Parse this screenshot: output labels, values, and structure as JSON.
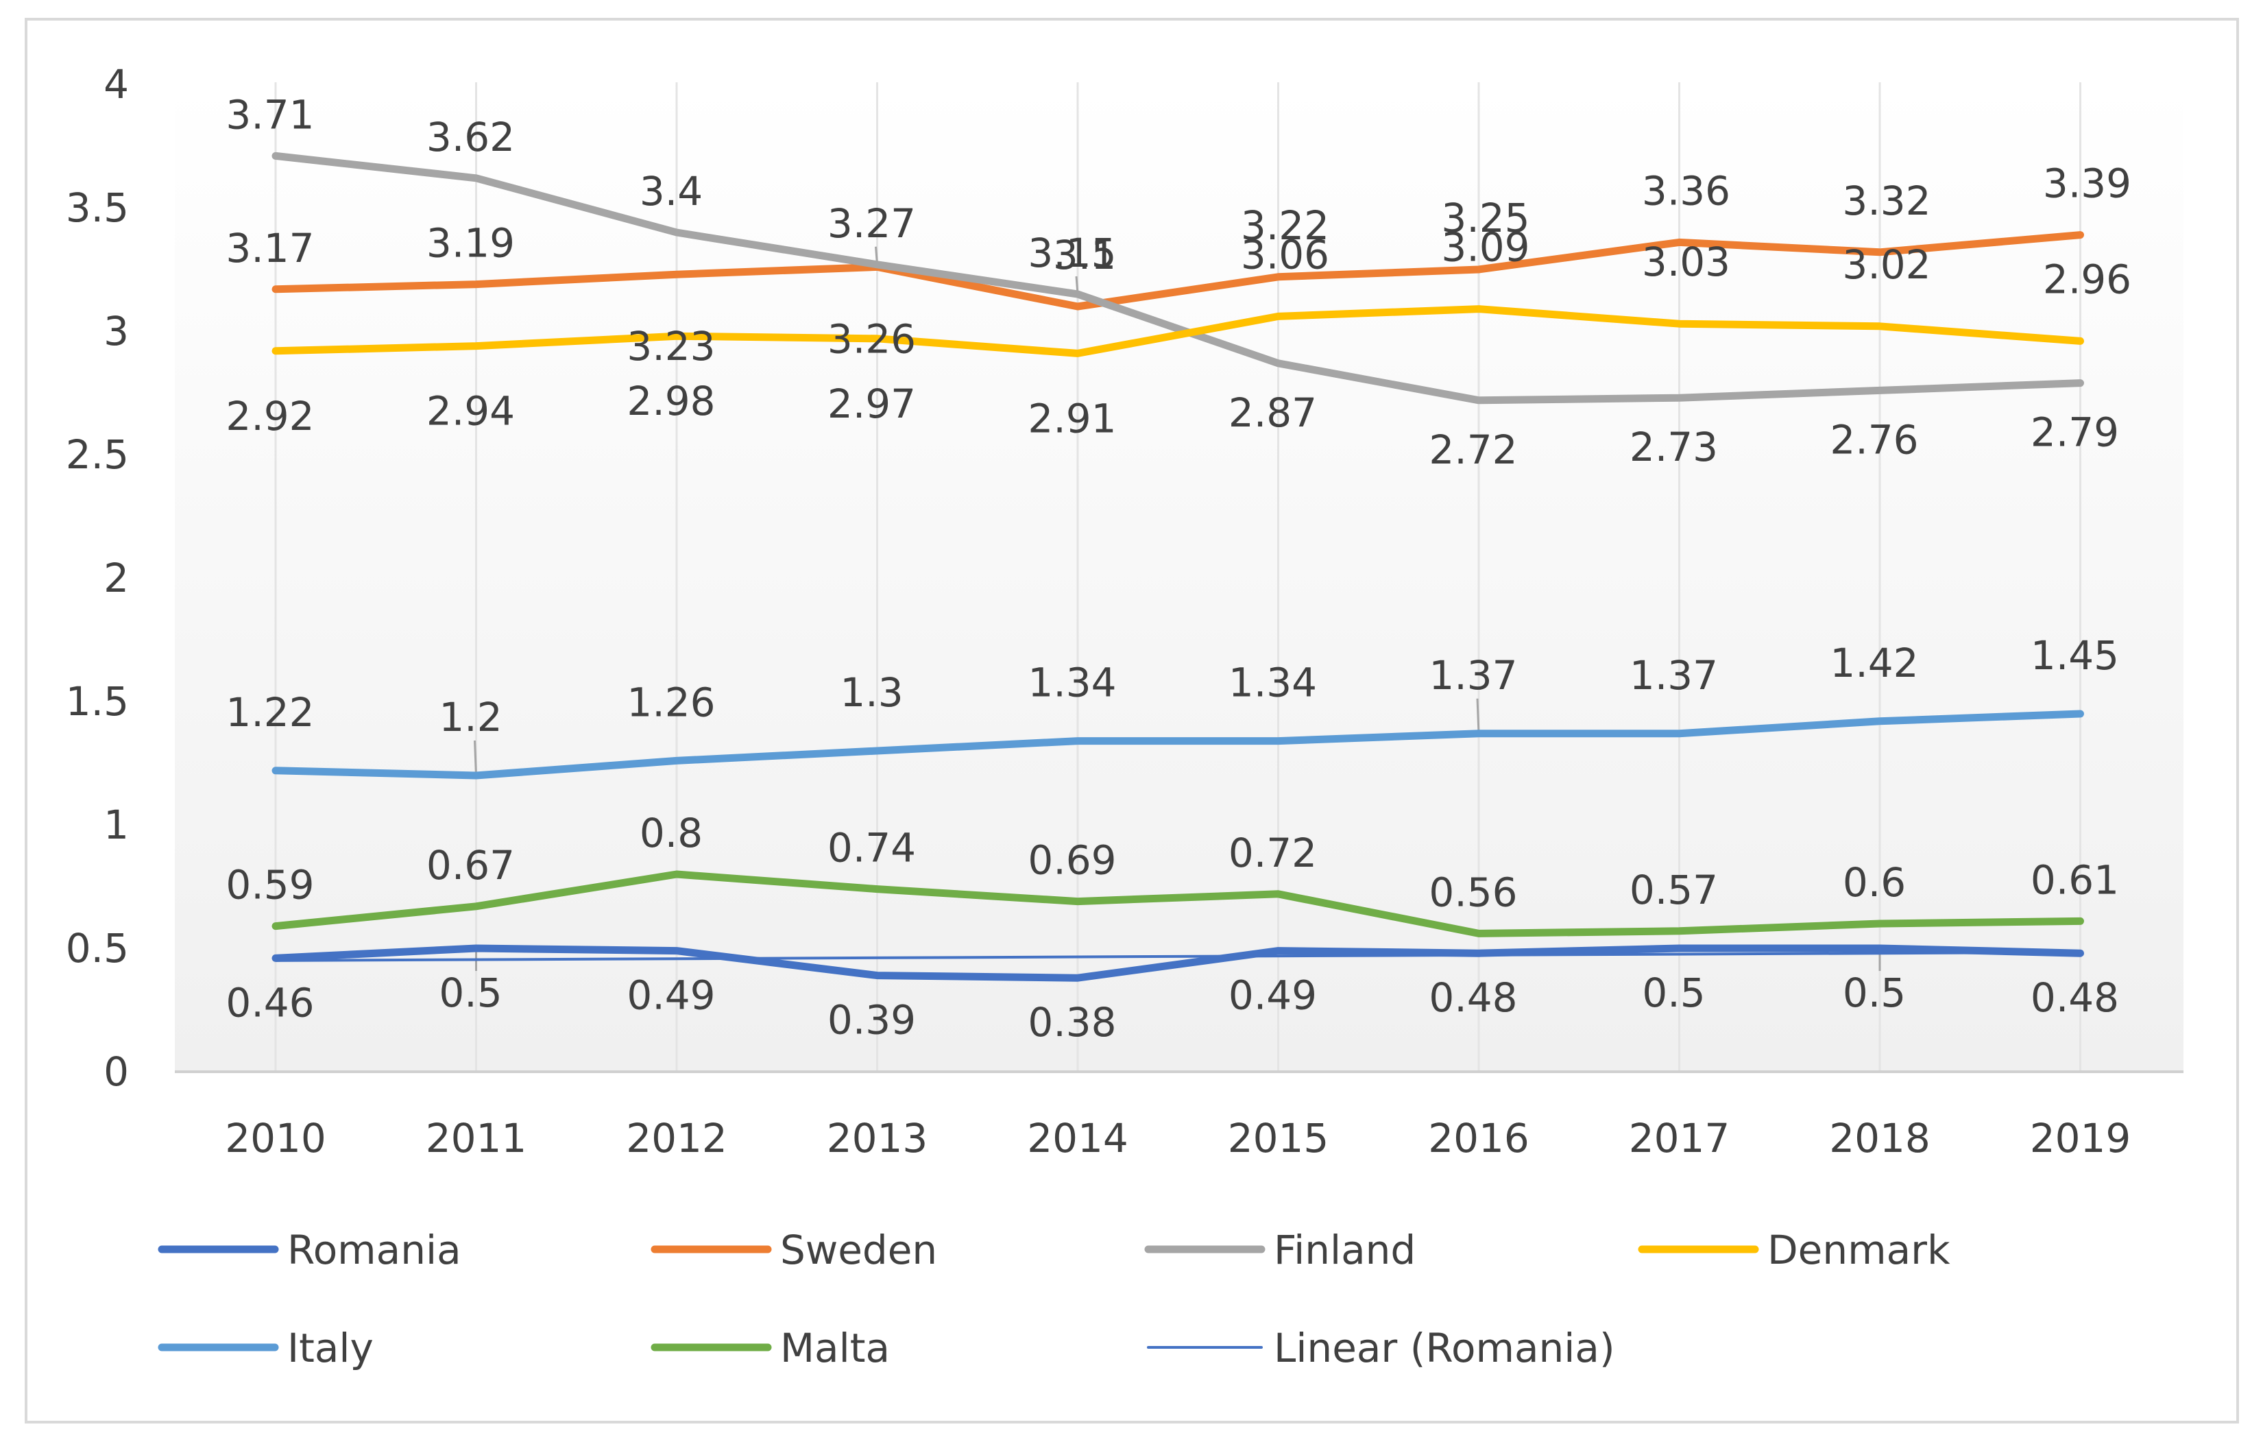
{
  "chart_data": {
    "type": "line",
    "title": "",
    "xlabel": "",
    "ylabel": "",
    "ylim": [
      0,
      4
    ],
    "yticks": [
      "0",
      "0.5",
      "1",
      "1.5",
      "2",
      "2.5",
      "3",
      "3.5",
      "4"
    ],
    "categories": [
      "2010",
      "2011",
      "2012",
      "2013",
      "2014",
      "2015",
      "2016",
      "2017",
      "2018",
      "2019"
    ],
    "legend_position": "bottom",
    "series": [
      {
        "name": "Romania",
        "color": "#4472c4",
        "values": [
          0.46,
          0.5,
          0.49,
          0.39,
          0.38,
          0.49,
          0.48,
          0.5,
          0.5,
          0.48
        ],
        "labels": [
          "0.46",
          "0.5",
          "0.49",
          "0.39",
          "0.38",
          "0.49",
          "0.48",
          "0.5",
          "0.5",
          "0.48"
        ]
      },
      {
        "name": "Sweden",
        "color": "#ed7d31",
        "values": [
          3.17,
          3.19,
          3.23,
          3.26,
          3.1,
          3.22,
          3.25,
          3.36,
          3.32,
          3.39
        ],
        "labels": [
          "3.17",
          "3.19",
          "3.23",
          "3.26",
          "3.1",
          "3.22",
          "3.25",
          "3.36",
          "3.32",
          "3.39"
        ]
      },
      {
        "name": "Finland",
        "color": "#a5a5a5",
        "values": [
          3.71,
          3.62,
          3.4,
          3.27,
          3.15,
          2.87,
          2.72,
          2.73,
          2.76,
          2.79
        ],
        "labels": [
          "3.71",
          "3.62",
          "3.4",
          "3.27",
          "3.15",
          "2.87",
          "2.72",
          "2.73",
          "2.76",
          "2.79"
        ]
      },
      {
        "name": "Denmark",
        "color": "#ffc000",
        "values": [
          2.92,
          2.94,
          2.98,
          2.97,
          2.91,
          3.06,
          3.09,
          3.03,
          3.02,
          2.96
        ],
        "labels": [
          "2.92",
          "2.94",
          "2.98",
          "2.97",
          "2.91",
          "3.06",
          "3.09",
          "3.03",
          "3.02",
          "2.96"
        ]
      },
      {
        "name": "Italy",
        "color": "#5b9bd5",
        "values": [
          1.22,
          1.2,
          1.26,
          1.3,
          1.34,
          1.34,
          1.37,
          1.37,
          1.42,
          1.45
        ],
        "labels": [
          "1.22",
          "1.2",
          "1.26",
          "1.3",
          "1.34",
          "1.34",
          "1.37",
          "1.37",
          "1.42",
          "1.45"
        ]
      },
      {
        "name": "Malta",
        "color": "#70ad47",
        "values": [
          0.59,
          0.67,
          0.8,
          0.74,
          0.69,
          0.72,
          0.56,
          0.57,
          0.6,
          0.61
        ],
        "labels": [
          "0.59",
          "0.67",
          "0.8",
          "0.74",
          "0.69",
          "0.72",
          "0.56",
          "0.57",
          "0.6",
          "0.61"
        ]
      }
    ],
    "trendline": {
      "name": "Linear (Romania)",
      "of": "Romania",
      "type": "linear",
      "color": "#4472c4"
    }
  }
}
